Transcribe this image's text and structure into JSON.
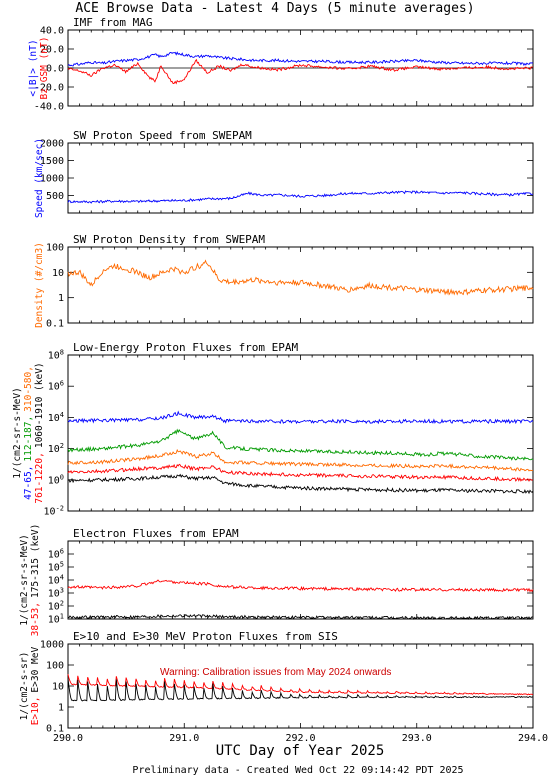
{
  "page": {
    "title": "ACE Browse Data - Latest 4 Days (5 minute averages)",
    "footer": "Preliminary data - Created Wed Oct 22 09:14:42 PDT 2025",
    "xaxis_label": "UTC Day of Year 2025",
    "x_ticks": [
      "290.0",
      "291.0",
      "292.0",
      "293.0",
      "294.0"
    ]
  },
  "colors": {
    "blue": "#0000ff",
    "red": "#ff0000",
    "orange": "#ff6a00",
    "green": "#009a00",
    "black": "#000000",
    "warning": "#cc0000"
  },
  "chart_data": [
    {
      "type": "line",
      "title": "IMF from MAG",
      "ylabel_parts": [
        {
          "text": "<|B|> (nT)",
          "color": "blue"
        },
        {
          "text": "Bz GSM (nT)",
          "color": "red"
        }
      ],
      "xlim": [
        290.0,
        294.0
      ],
      "ylim": [
        -40.0,
        40.0
      ],
      "y_ticks": [
        "40.0",
        "20.0",
        "0.0",
        "-20.0",
        "-40.0"
      ],
      "zero_line": true,
      "series": [
        {
          "label": "<|B|>",
          "color": "blue",
          "x": [
            290.0,
            290.1,
            290.2,
            290.3,
            290.4,
            290.5,
            290.6,
            290.7,
            290.75,
            290.8,
            290.9,
            291.0,
            291.1,
            291.2,
            291.3,
            291.4,
            291.5,
            291.6,
            291.8,
            292.0,
            292.2,
            292.4,
            292.6,
            292.8,
            293.0,
            293.2,
            293.4,
            293.6,
            293.8,
            294.0
          ],
          "y": [
            3,
            4,
            6,
            5,
            7,
            8,
            9,
            12,
            14,
            12,
            16,
            14,
            12,
            13,
            11,
            10,
            9,
            8,
            8,
            7,
            7,
            6,
            6,
            7,
            8,
            6,
            5,
            5,
            5,
            4
          ]
        },
        {
          "label": "Bz",
          "color": "red",
          "x": [
            290.0,
            290.1,
            290.2,
            290.3,
            290.4,
            290.5,
            290.6,
            290.7,
            290.75,
            290.8,
            290.9,
            291.0,
            291.1,
            291.2,
            291.3,
            291.4,
            291.5,
            291.6,
            291.8,
            292.0,
            292.2,
            292.4,
            292.6,
            292.8,
            293.0,
            293.2,
            293.4,
            293.6,
            293.8,
            294.0
          ],
          "y": [
            -1,
            -3,
            -8,
            0,
            3,
            -4,
            5,
            -10,
            -14,
            3,
            -16,
            -12,
            8,
            -5,
            2,
            -3,
            4,
            1,
            -2,
            3,
            1,
            -1,
            2,
            -2,
            1,
            -1,
            0,
            1,
            -1,
            0
          ]
        }
      ]
    },
    {
      "type": "line",
      "title": "SW Proton Speed from SWEPAM",
      "ylabel_parts": [
        {
          "text": "Speed (km/sec)",
          "color": "blue"
        }
      ],
      "xlim": [
        290.0,
        294.0
      ],
      "ylim": [
        0,
        2000
      ],
      "y_ticks": [
        "2000",
        "1500",
        "1000",
        "500"
      ],
      "series": [
        {
          "label": "Speed",
          "color": "blue",
          "x": [
            290.0,
            290.2,
            290.4,
            290.6,
            290.8,
            291.0,
            291.2,
            291.4,
            291.55,
            291.7,
            291.8,
            292.0,
            292.2,
            292.4,
            292.6,
            292.8,
            293.0,
            293.2,
            293.4,
            293.6,
            293.8,
            294.0
          ],
          "y": [
            330,
            320,
            340,
            330,
            350,
            360,
            400,
            420,
            560,
            500,
            520,
            480,
            500,
            560,
            560,
            590,
            600,
            570,
            580,
            540,
            520,
            560
          ]
        }
      ]
    },
    {
      "type": "line",
      "title": "SW Proton Density from SWEPAM",
      "ylabel_parts": [
        {
          "text": "Density (#/cm3)",
          "color": "orange"
        }
      ],
      "xlim": [
        290.0,
        294.0
      ],
      "ylim": [
        0.1,
        100
      ],
      "log_y": true,
      "y_ticks": [
        "100",
        "10",
        "1",
        "0.1"
      ],
      "series": [
        {
          "label": "Density",
          "color": "orange",
          "x": [
            290.0,
            290.1,
            290.2,
            290.3,
            290.4,
            290.5,
            290.6,
            290.7,
            290.8,
            290.9,
            291.0,
            291.1,
            291.2,
            291.3,
            291.4,
            291.6,
            291.8,
            292.0,
            292.2,
            292.4,
            292.6,
            292.8,
            293.0,
            293.2,
            293.4,
            293.6,
            293.8,
            294.0
          ],
          "y": [
            9,
            10,
            3,
            12,
            18,
            14,
            10,
            6,
            9,
            14,
            10,
            16,
            25,
            5,
            4,
            5,
            4,
            4,
            3,
            2,
            3,
            2.5,
            2,
            1.8,
            1.6,
            2,
            2.2,
            2.5
          ]
        }
      ]
    },
    {
      "type": "line",
      "title": "Low-Energy Proton Fluxes from EPAM",
      "ylabel_parts": [
        {
          "text": "1/(cm2-sr-s-MeV)",
          "color": "black"
        },
        {
          "text": "47-65,",
          "color": "blue"
        },
        {
          "text": "112-187,",
          "color": "green"
        },
        {
          "text": "310-580,",
          "color": "orange"
        },
        {
          "text": "761-1220,",
          "color": "red"
        },
        {
          "text": "1060-1910 (keV)",
          "color": "black"
        }
      ],
      "xlim": [
        290.0,
        294.0
      ],
      "ylim": [
        0.01,
        100000000
      ],
      "log_y": true,
      "y_ticks": [
        "10^8",
        "10^6",
        "10^4",
        "10^2",
        "10^0",
        "10^-2"
      ],
      "series": [
        {
          "label": "47-65",
          "color": "blue",
          "x": [
            290.0,
            290.3,
            290.6,
            290.8,
            290.95,
            291.1,
            291.25,
            291.35,
            291.6,
            292.0,
            292.4,
            292.8,
            293.1,
            293.2,
            293.4,
            293.6,
            293.8,
            294.0
          ],
          "y": [
            6000,
            6500,
            7000,
            9000,
            18000,
            10000,
            12000,
            6000,
            5500,
            5500,
            5500,
            5500,
            6000,
            5500,
            5500,
            5500,
            5500,
            5500
          ]
        },
        {
          "label": "112-187",
          "color": "green",
          "x": [
            290.0,
            290.3,
            290.6,
            290.8,
            290.95,
            291.1,
            291.25,
            291.35,
            291.6,
            292.0,
            292.4,
            292.8,
            293.1,
            293.2,
            293.4,
            293.6,
            293.8,
            294.0
          ],
          "y": [
            80,
            100,
            160,
            300,
            1400,
            400,
            1100,
            120,
            90,
            70,
            60,
            50,
            40,
            50,
            40,
            30,
            25,
            20
          ]
        },
        {
          "label": "310-580",
          "color": "orange",
          "x": [
            290.0,
            290.3,
            290.6,
            290.8,
            290.95,
            291.1,
            291.25,
            291.35,
            291.6,
            292.0,
            292.4,
            292.8,
            293.1,
            293.2,
            293.4,
            293.6,
            293.8,
            294.0
          ],
          "y": [
            12,
            14,
            22,
            35,
            70,
            30,
            50,
            14,
            12,
            10,
            9,
            8,
            7,
            8,
            7,
            6,
            5,
            4
          ]
        },
        {
          "label": "761-1220",
          "color": "red",
          "x": [
            290.0,
            290.3,
            290.6,
            290.8,
            290.95,
            291.1,
            291.25,
            291.35,
            291.6,
            292.0,
            292.4,
            292.8,
            293.1,
            293.2,
            293.4,
            293.6,
            293.8,
            294.0
          ],
          "y": [
            3,
            3.5,
            5,
            6,
            8,
            5,
            7,
            3,
            2.5,
            2,
            1.8,
            1.6,
            1.4,
            1.5,
            1.3,
            1.2,
            1.1,
            1
          ]
        },
        {
          "label": "1060-1910",
          "color": "black",
          "x": [
            290.0,
            290.3,
            290.6,
            290.8,
            290.95,
            291.1,
            291.25,
            291.35,
            291.6,
            292.0,
            292.4,
            292.8,
            293.1,
            293.2,
            293.4,
            293.6,
            293.8,
            294.0
          ],
          "y": [
            0.9,
            1,
            1.2,
            1.5,
            1.8,
            1.2,
            1.4,
            0.6,
            0.4,
            0.3,
            0.25,
            0.22,
            0.2,
            0.22,
            0.2,
            0.2,
            0.18,
            0.18
          ]
        }
      ]
    },
    {
      "type": "line",
      "title": "Electron Fluxes from EPAM",
      "ylabel_parts": [
        {
          "text": "1/(cm2-sr-s-MeV)",
          "color": "black"
        },
        {
          "text": "38-53,",
          "color": "red"
        },
        {
          "text": "175-315 (keV)",
          "color": "black"
        }
      ],
      "xlim": [
        290.0,
        294.0
      ],
      "ylim": [
        10,
        10000000
      ],
      "log_y": true,
      "y_ticks": [
        "10^6",
        "10^5",
        "10^4",
        "10^3",
        "10^2",
        "10^1"
      ],
      "series": [
        {
          "label": "38-53",
          "color": "red",
          "x": [
            290.0,
            290.3,
            290.6,
            290.8,
            291.0,
            291.2,
            291.35,
            291.6,
            292.0,
            292.4,
            292.8,
            293.2,
            293.6,
            294.0
          ],
          "y": [
            3000,
            2500,
            3500,
            9000,
            6000,
            5000,
            3000,
            2500,
            2200,
            2000,
            1800,
            1800,
            1700,
            1700
          ]
        },
        {
          "label": "175-315",
          "color": "black",
          "x": [
            290.0,
            290.3,
            290.6,
            290.8,
            291.0,
            291.2,
            291.35,
            291.6,
            292.0,
            292.4,
            292.8,
            293.2,
            293.6,
            294.0
          ],
          "y": [
            14,
            14,
            15,
            17,
            18,
            16,
            15,
            14,
            13,
            13,
            12,
            12,
            12,
            12
          ]
        }
      ]
    },
    {
      "type": "line",
      "title": "E>10 and E>30 MeV Proton Fluxes from SIS",
      "annotation": "Warning: Calibration issues from May 2024 onwards",
      "ylabel_parts": [
        {
          "text": "1/(cm2-s-sr)",
          "color": "black"
        },
        {
          "text": "E>10,",
          "color": "red"
        },
        {
          "text": "E>30 MeV",
          "color": "black"
        }
      ],
      "xlim": [
        290.0,
        294.0
      ],
      "ylim": [
        0.1,
        1000
      ],
      "log_y": true,
      "y_ticks": [
        "1000",
        "100",
        "10",
        "1",
        "0.1"
      ],
      "series": [
        {
          "label": "E>10",
          "color": "red",
          "oscillation": {
            "period_days": 0.083,
            "base": [
              [
                290.0,
                12
              ],
              [
                291.2,
                8
              ],
              [
                292.0,
                5
              ],
              [
                294.0,
                4
              ]
            ],
            "peak": [
              [
                290.0,
                35
              ],
              [
                291.2,
                20
              ],
              [
                292.0,
                7
              ],
              [
                294.0,
                4
              ]
            ]
          }
        },
        {
          "label": "E>30",
          "color": "black",
          "oscillation": {
            "period_days": 0.083,
            "base": [
              [
                290.0,
                2
              ],
              [
                291.2,
                2.5
              ],
              [
                292.0,
                2.8
              ],
              [
                294.0,
                3
              ]
            ],
            "peak": [
              [
                290.0,
                25
              ],
              [
                291.2,
                15
              ],
              [
                292.0,
                4
              ],
              [
                294.0,
                3
              ]
            ]
          }
        }
      ]
    }
  ]
}
